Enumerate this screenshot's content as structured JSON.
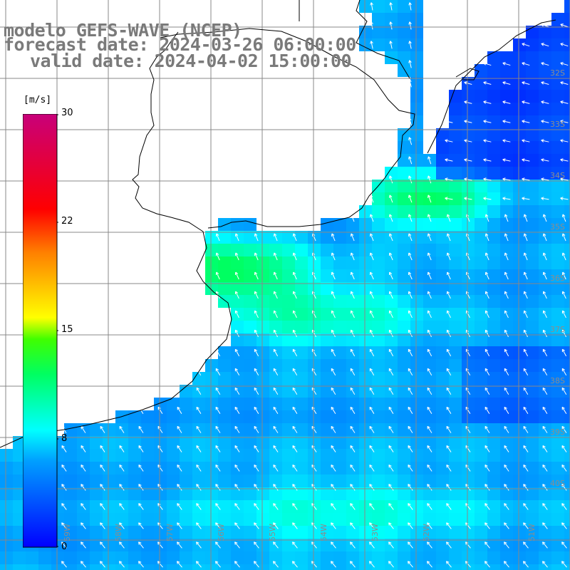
{
  "title": {
    "line1": "modelo GEFS-WAVE (NCEP)",
    "line2": "forecast date: 2024-03-26 06:00:00",
    "line3": "valid date: 2024-04-02 15:00:00"
  },
  "colorbar": {
    "unit": "[m/s]",
    "ticks": [
      "30",
      "22",
      "15",
      "8",
      "0"
    ],
    "range": [
      0,
      30
    ],
    "colors": [
      "#0000ff",
      "#00c8ff",
      "#00ffff",
      "#00ff00",
      "#ffff00",
      "#ff8000",
      "#ff0000",
      "#c8007a"
    ]
  },
  "grid": {
    "lat_labels": [
      "32S",
      "33S",
      "34S",
      "35S",
      "36S",
      "37S",
      "38S",
      "39S",
      "40S"
    ],
    "lon_labels": [
      "59W",
      "58W",
      "57W",
      "56W",
      "55W",
      "54W",
      "53W",
      "52W",
      "51W"
    ],
    "line_color": "#888888"
  },
  "field": {
    "variable": "wind speed",
    "units": "m/s",
    "typical_range": [
      3,
      12
    ],
    "dominant_direction": "from south-southeast"
  },
  "colors": {
    "land": "#ffffff",
    "coast": "#000000",
    "arrow": "#ffffff"
  }
}
